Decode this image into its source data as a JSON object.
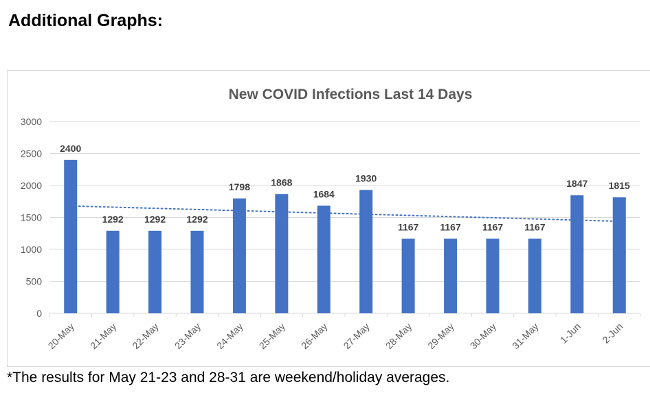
{
  "page": {
    "heading": "Additional Graphs:",
    "footnote": "*The results for May 21-23 and 28-31 are weekend/holiday averages."
  },
  "chart_data": {
    "type": "bar",
    "title": "New COVID Infections Last 14 Days",
    "categories": [
      "20-May",
      "21-May",
      "22-May",
      "23-May",
      "24-May",
      "25-May",
      "26-May",
      "27-May",
      "28-May",
      "29-May",
      "30-May",
      "31-May",
      "1-Jun",
      "2-Jun"
    ],
    "values": [
      2400,
      1292,
      1292,
      1292,
      1798,
      1868,
      1684,
      1930,
      1167,
      1167,
      1167,
      1167,
      1847,
      1815
    ],
    "ylim": [
      0,
      3000
    ],
    "yticks": [
      0,
      500,
      1000,
      1500,
      2000,
      2500,
      3000
    ],
    "xlabel": "",
    "ylabel": "",
    "grid": true,
    "data_labels": true,
    "trendline": {
      "type": "linear",
      "style": "dotted",
      "start": 1680,
      "end": 1440
    },
    "colors": {
      "bar": "#4472c4",
      "trendline": "#4472c4",
      "grid": "#d9d9d9",
      "title": "#595959",
      "tick_label": "#595959",
      "data_label": "#404040"
    }
  }
}
